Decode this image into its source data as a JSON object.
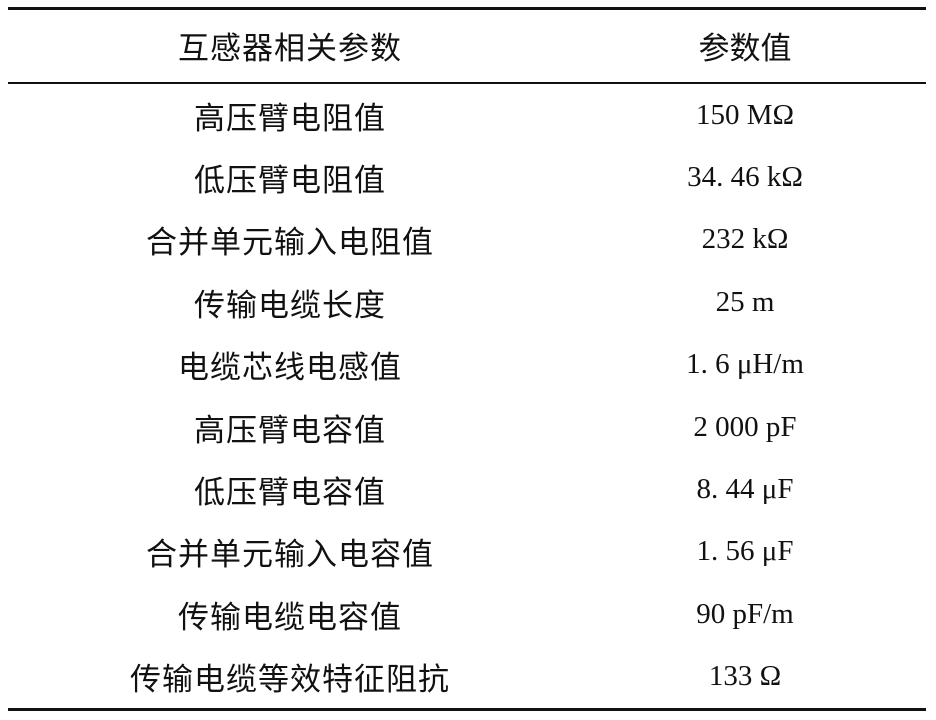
{
  "table": {
    "headers": [
      "互感器相关参数",
      "参数值"
    ],
    "rows": [
      [
        "高压臂电阻值",
        "150 MΩ"
      ],
      [
        "低压臂电阻值",
        "34. 46 kΩ"
      ],
      [
        "合并单元输入电阻值",
        "232 kΩ"
      ],
      [
        "传输电缆长度",
        "25 m"
      ],
      [
        "电缆芯线电感值",
        "1. 6 μH/m"
      ],
      [
        "高压臂电容值",
        "2 000 pF"
      ],
      [
        "低压臂电容值",
        "8. 44 μF"
      ],
      [
        "合并单元输入电容值",
        "1. 56 μF"
      ],
      [
        "传输电缆电容值",
        "90 pF/m"
      ],
      [
        "传输电缆等效特征阻抗",
        "133 Ω"
      ]
    ]
  }
}
